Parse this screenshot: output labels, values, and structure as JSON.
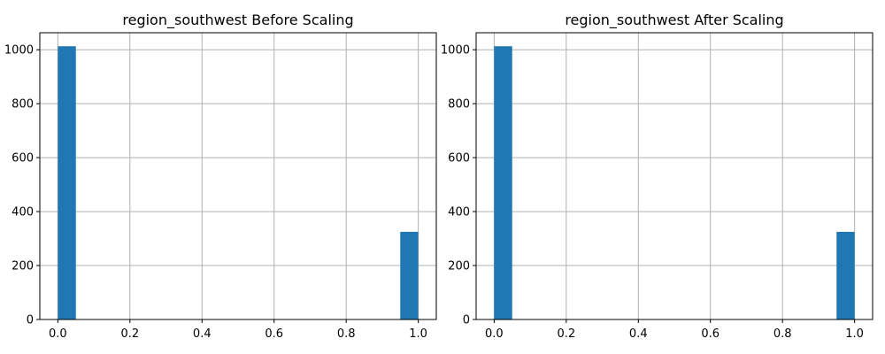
{
  "chart_data": [
    {
      "type": "bar",
      "title": "region_southwest Before Scaling",
      "xlabel": "",
      "ylabel": "",
      "xlim": [
        -0.05,
        1.05
      ],
      "ylim": [
        0,
        1063
      ],
      "xticks": [
        "0.0",
        "0.2",
        "0.4",
        "0.6",
        "0.8",
        "1.0"
      ],
      "yticks": [
        "0",
        "200",
        "400",
        "600",
        "800",
        "1000"
      ],
      "grid": true,
      "bins": [
        {
          "x0": 0.0,
          "x1": 0.05,
          "value": 1013
        },
        {
          "x0": 0.95,
          "x1": 1.0,
          "value": 325
        }
      ],
      "color": "#1f77b4"
    },
    {
      "type": "bar",
      "title": "region_southwest After Scaling",
      "xlabel": "",
      "ylabel": "",
      "xlim": [
        -0.05,
        1.05
      ],
      "ylim": [
        0,
        1063
      ],
      "xticks": [
        "0.0",
        "0.2",
        "0.4",
        "0.6",
        "0.8",
        "1.0"
      ],
      "yticks": [
        "0",
        "200",
        "400",
        "600",
        "800",
        "1000"
      ],
      "grid": true,
      "bins": [
        {
          "x0": 0.0,
          "x1": 0.05,
          "value": 1013
        },
        {
          "x0": 0.95,
          "x1": 1.0,
          "value": 325
        }
      ],
      "color": "#1f77b4"
    }
  ]
}
